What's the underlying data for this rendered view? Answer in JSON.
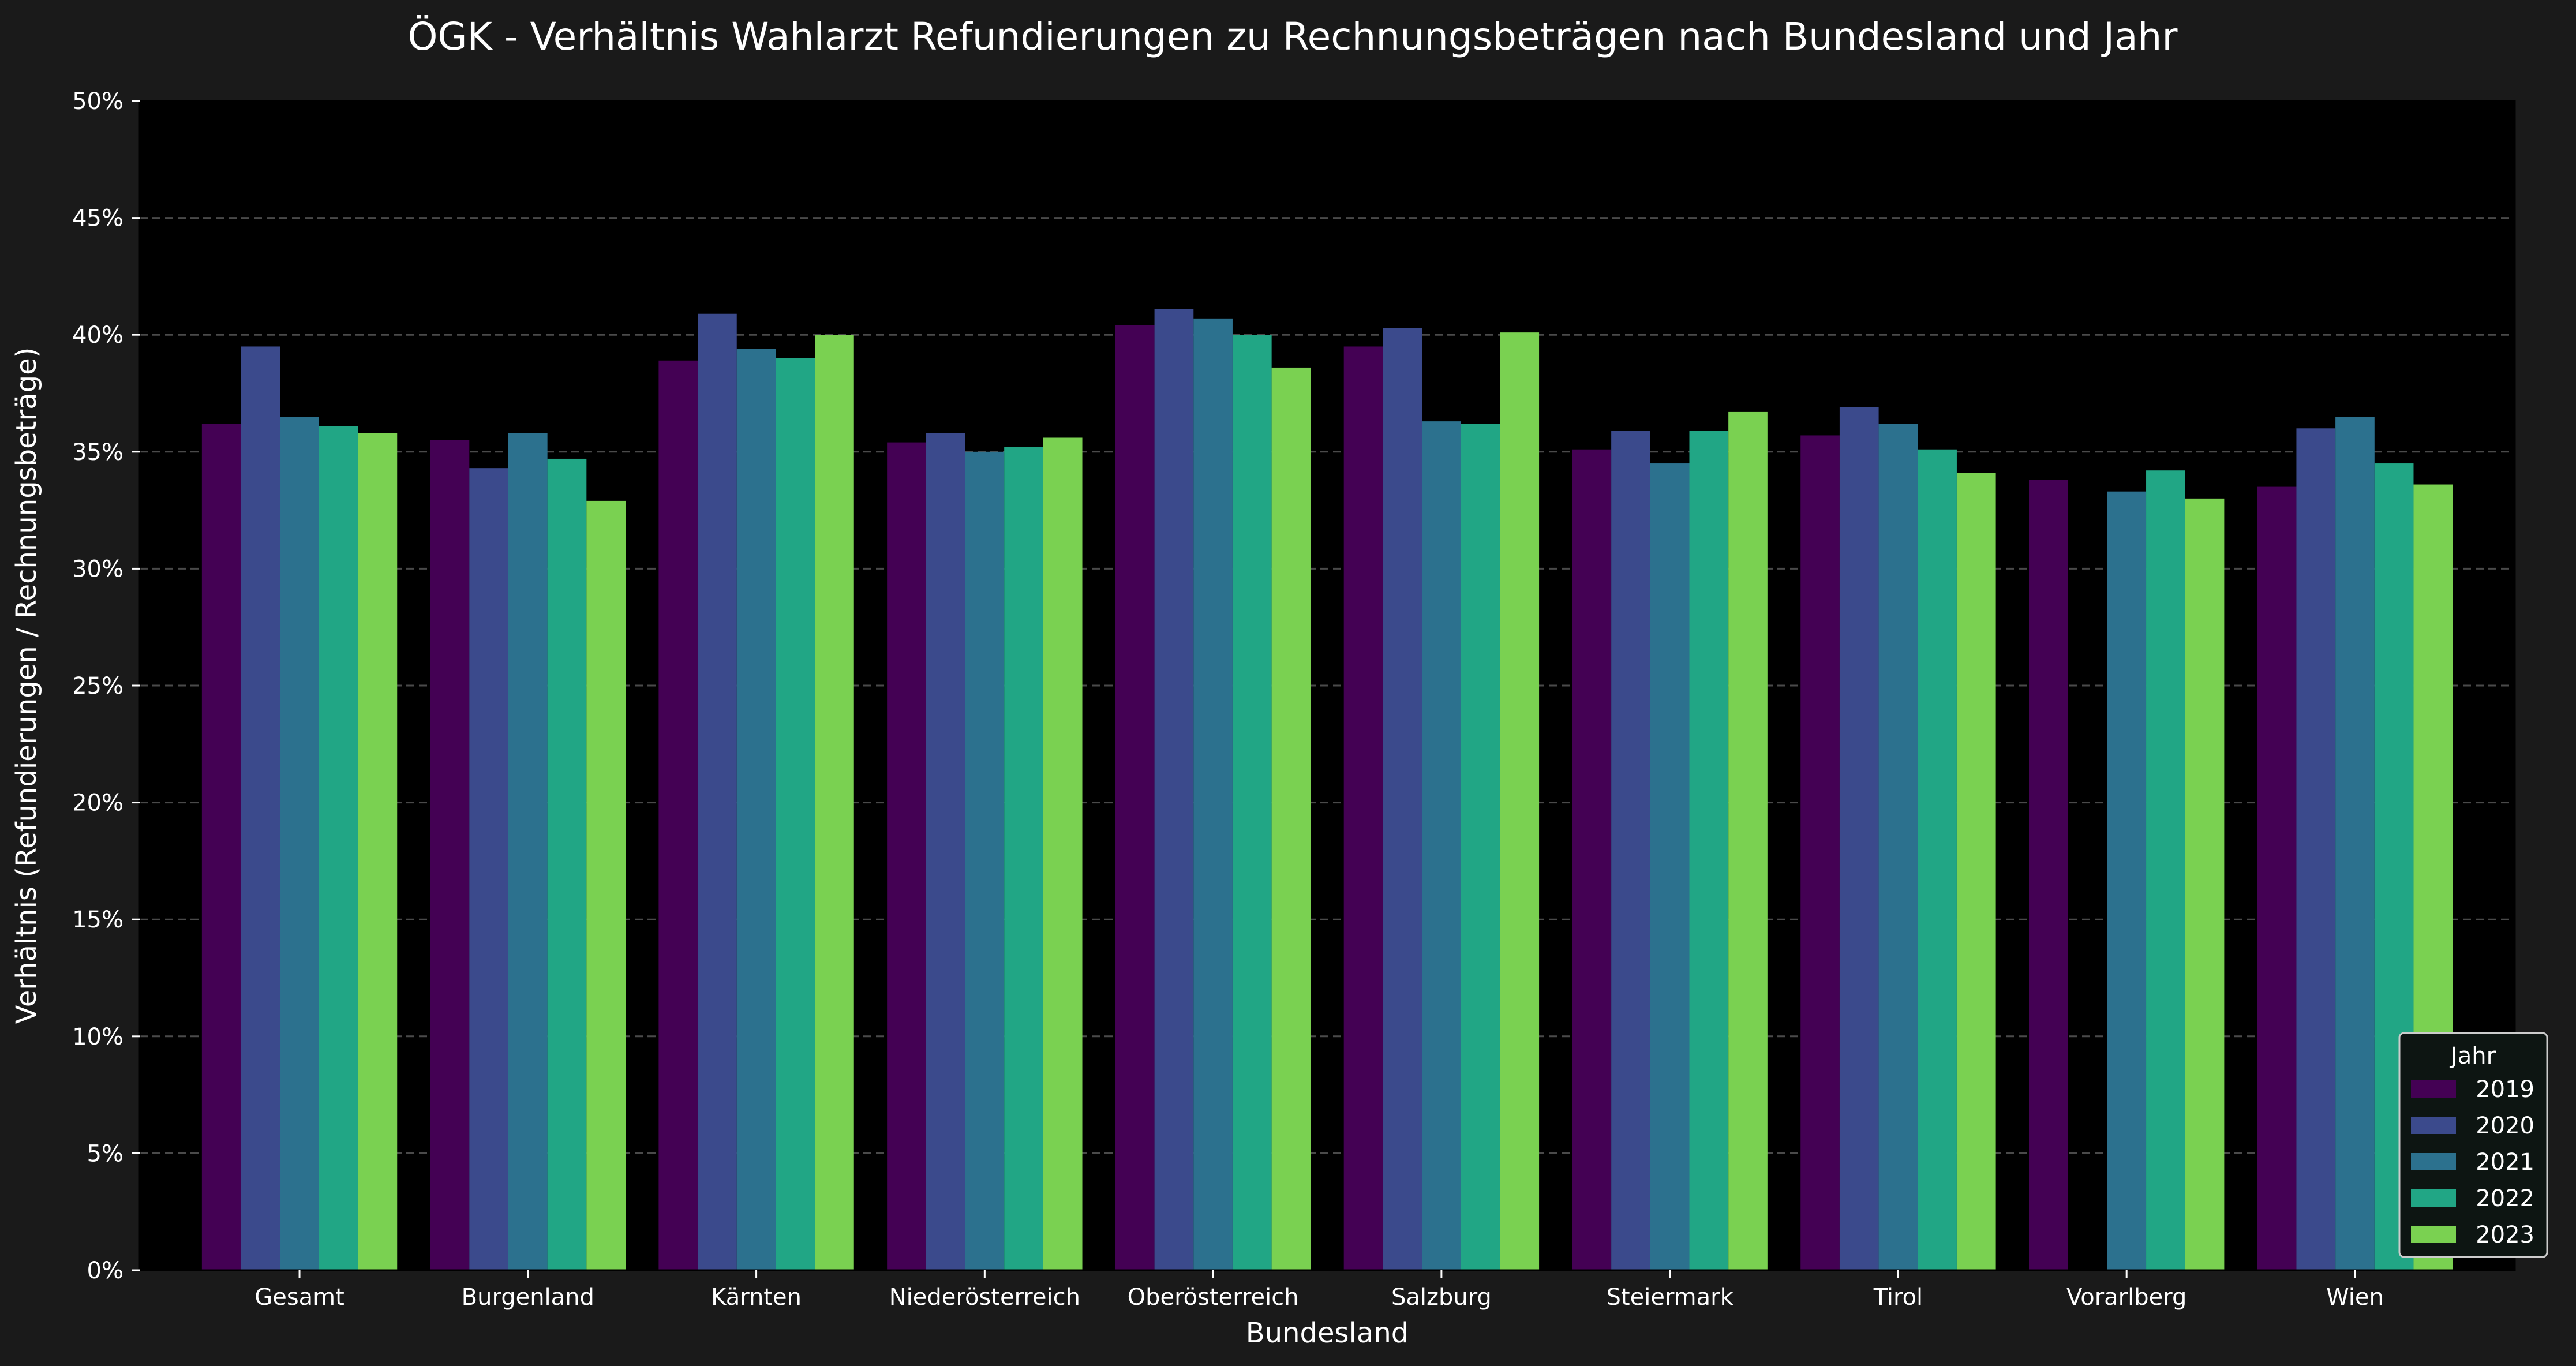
{
  "chart_data": {
    "type": "bar",
    "title": "ÖGK - Verhältnis Wahlarzt Refundierungen zu Rechnungsbeträgen nach Bundesland und Jahr",
    "xlabel": "Bundesland",
    "ylabel": "Verhältnis (Refundierungen / Rechnungsbeträge)",
    "ylim": [
      0,
      0.5
    ],
    "yticks": [
      0,
      0.05,
      0.1,
      0.15,
      0.2,
      0.25,
      0.3,
      0.35,
      0.4,
      0.45,
      0.5
    ],
    "ytick_labels": [
      "0%",
      "5%",
      "10%",
      "15%",
      "20%",
      "25%",
      "30%",
      "35%",
      "40%",
      "45%",
      "50%"
    ],
    "grid": "horizontal-dashed",
    "legend": {
      "title": "Jahr",
      "placement": "bottom-right"
    },
    "categories": [
      "Gesamt",
      "Burgenland",
      "Kärnten",
      "Niederösterreich",
      "Oberösterreich",
      "Salzburg",
      "Steiermark",
      "Tirol",
      "Vorarlberg",
      "Wien"
    ],
    "series": [
      {
        "name": "2019",
        "color": "#440154",
        "values": [
          0.362,
          0.355,
          0.389,
          0.354,
          0.404,
          0.395,
          0.351,
          0.357,
          0.338,
          0.335
        ]
      },
      {
        "name": "2020",
        "color": "#3b4a8c",
        "values": [
          0.395,
          0.343,
          0.409,
          0.358,
          0.411,
          0.403,
          0.359,
          0.369,
          null,
          0.36
        ]
      },
      {
        "name": "2021",
        "color": "#2c718e",
        "values": [
          0.365,
          0.358,
          0.394,
          0.35,
          0.407,
          0.363,
          0.345,
          0.362,
          0.333,
          0.365
        ]
      },
      {
        "name": "2022",
        "color": "#21a685",
        "values": [
          0.361,
          0.347,
          0.39,
          0.352,
          0.4,
          0.362,
          0.359,
          0.351,
          0.342,
          0.345
        ]
      },
      {
        "name": "2023",
        "color": "#7ad151",
        "values": [
          0.358,
          0.329,
          0.4,
          0.356,
          0.386,
          0.401,
          0.367,
          0.341,
          0.33,
          0.336
        ]
      }
    ]
  },
  "colors": {
    "background": "#1a1a1a",
    "plot_background": "#000000",
    "grid": "#4a4a4a",
    "text": "#ffffff",
    "legend_background": "#0d1512",
    "legend_border": "#cccccc"
  }
}
